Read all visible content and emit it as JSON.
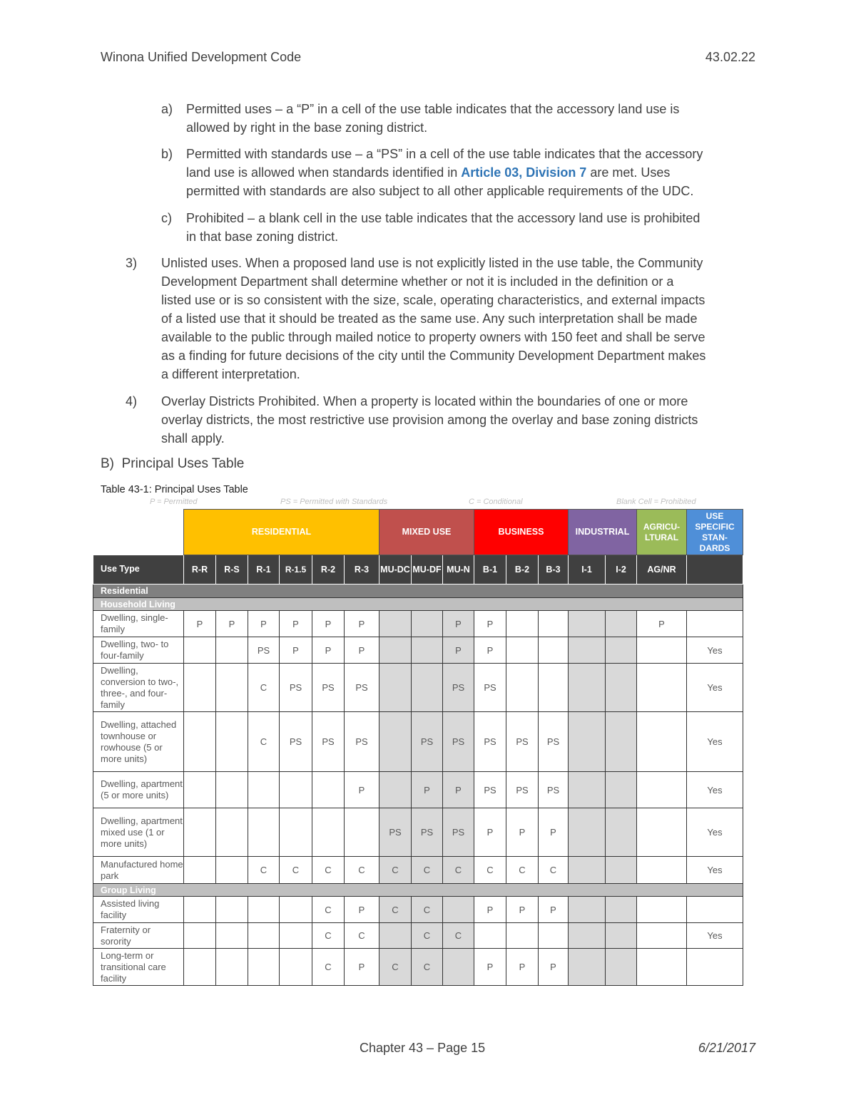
{
  "header": {
    "title": "Winona Unified Development Code",
    "code": "43.02.22"
  },
  "items": {
    "a": {
      "marker": "a)",
      "text1": "Permitted uses – a “P” in a cell of the use table indicates that the accessory land use is",
      "text2": "allowed by right in the base zoning district."
    },
    "b": {
      "marker": "b)",
      "text1": "Permitted with standards use – a “PS” in a cell of the use table indicates that the accessory",
      "text2a": "land use is allowed when standards identified in ",
      "link": "Article 03, Division 7",
      "text2b": " are met. Uses",
      "text3": "permitted with standards are also subject to all other applicable requirements of the UDC."
    },
    "c": {
      "marker": "c)",
      "text1": "Prohibited – a blank cell in the use table indicates that the accessory land use is prohibited",
      "text2": "in that base zoning district."
    },
    "n3": {
      "marker": "3)",
      "lines": [
        "Unlisted uses. When a proposed land use is not explicitly listed in the use table, the Community",
        "Development Department shall determine whether or not it is included in the definition or a",
        "listed use or is so consistent with the size, scale, operating characteristics, and external impacts",
        "of a listed use that it should be treated as the same use. Any such interpretation shall be made",
        "available to the public through mailed notice to property owners with 150 feet and shall be serve",
        "as a finding for future decisions of the city until the Community Development Department makes",
        "a different interpretation."
      ]
    },
    "n4": {
      "marker": "4)",
      "lines": [
        "Overlay Districts Prohibited. When a property is located within the boundaries of one or more",
        "overlay districts, the most restrictive use provision among the overlay and base zoning districts",
        "shall apply."
      ]
    }
  },
  "section": {
    "marker": "B)",
    "title": "Principal Uses Table"
  },
  "table": {
    "caption": "Table 43-1: Principal Uses Table",
    "legend": [
      "P = Permitted",
      "PS = Permitted with Standards",
      "C = Conditional",
      "Blank Cell = Prohibited"
    ],
    "groups": [
      {
        "label": "RESIDENTIAL",
        "color": "#ffc000"
      },
      {
        "label": "MIXED USE",
        "color": "#c0504d"
      },
      {
        "label": "BUSINESS",
        "color": "#ff0000"
      },
      {
        "label": "INDUSTRIAL",
        "color": "#8064a2"
      },
      {
        "label": "AGRICU-LTURAL",
        "color": "#9bbb59"
      },
      {
        "label": "USE SPECIFIC STAN-DARDS",
        "color": "#4f8fd8"
      }
    ],
    "columns": [
      "Use Type",
      "R-R",
      "R-S",
      "R-1",
      "R-1.5",
      "R-2",
      "R-3",
      "MU-DC",
      "MU-DF",
      "MU-N",
      "B-1",
      "B-2",
      "B-3",
      "I-1",
      "I-2",
      "AG/NR",
      ""
    ],
    "sections": [
      {
        "title": "Residential",
        "subsections": [
          {
            "title": "Household Living",
            "rows": [
              {
                "use": "Dwelling, single-family",
                "cells": [
                  "P",
                  "P",
                  "P",
                  "P",
                  "P",
                  "P",
                  "",
                  "",
                  "P",
                  "P",
                  "",
                  "",
                  "",
                  "",
                  "P",
                  ""
                ]
              },
              {
                "use": "Dwelling, two- to four-family",
                "cells": [
                  "",
                  "",
                  "PS",
                  "P",
                  "P",
                  "P",
                  "",
                  "",
                  "P",
                  "P",
                  "",
                  "",
                  "",
                  "",
                  "",
                  "Yes"
                ]
              },
              {
                "use": "Dwelling, conversion to two-, three-, and four-family",
                "cells": [
                  "",
                  "",
                  "C",
                  "PS",
                  "PS",
                  "PS",
                  "",
                  "",
                  "PS",
                  "PS",
                  "",
                  "",
                  "",
                  "",
                  "",
                  "Yes"
                ]
              },
              {
                "use": "Dwelling, attached townhouse or rowhouse (5 or more units)",
                "cells": [
                  "",
                  "",
                  "C",
                  "PS",
                  "PS",
                  "PS",
                  "",
                  "PS",
                  "PS",
                  "PS",
                  "PS",
                  "PS",
                  "",
                  "",
                  "",
                  "Yes"
                ]
              },
              {
                "use": "Dwelling, apartment (5 or more units)",
                "cells": [
                  "",
                  "",
                  "",
                  "",
                  "",
                  "P",
                  "",
                  "P",
                  "P",
                  "PS",
                  "PS",
                  "PS",
                  "",
                  "",
                  "",
                  "Yes"
                ]
              },
              {
                "use": "Dwelling, apartment mixed use (1 or more units)",
                "cells": [
                  "",
                  "",
                  "",
                  "",
                  "",
                  "",
                  "PS",
                  "PS",
                  "PS",
                  "P",
                  "P",
                  "P",
                  "",
                  "",
                  "",
                  "Yes"
                ]
              },
              {
                "use": "Manufactured home park",
                "cells": [
                  "",
                  "",
                  "C",
                  "C",
                  "C",
                  "C",
                  "C",
                  "C",
                  "C",
                  "C",
                  "C",
                  "C",
                  "",
                  "",
                  "",
                  "Yes"
                ]
              }
            ]
          },
          {
            "title": "Group Living",
            "rows": [
              {
                "use": "Assisted living facility",
                "cells": [
                  "",
                  "",
                  "",
                  "",
                  "C",
                  "P",
                  "C",
                  "C",
                  "",
                  "P",
                  "P",
                  "P",
                  "",
                  "",
                  "",
                  ""
                ]
              },
              {
                "use": "Fraternity or sorority",
                "cells": [
                  "",
                  "",
                  "",
                  "",
                  "C",
                  "C",
                  "",
                  "C",
                  "C",
                  "",
                  "",
                  "",
                  "",
                  "",
                  "",
                  "Yes"
                ]
              },
              {
                "use": "Long-term or transitional care facility",
                "cells": [
                  "",
                  "",
                  "",
                  "",
                  "C",
                  "P",
                  "C",
                  "C",
                  "",
                  "P",
                  "P",
                  "P",
                  "",
                  "",
                  "",
                  ""
                ]
              }
            ]
          }
        ]
      }
    ]
  },
  "footer": {
    "page": "Chapter 43 – Page 15",
    "date": "6/21/2017"
  }
}
